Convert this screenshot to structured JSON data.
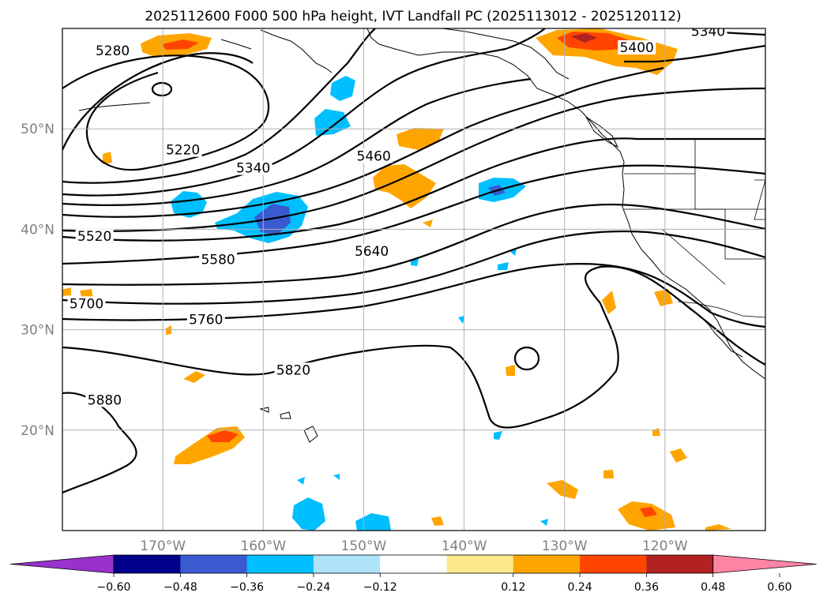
{
  "title": "2025112600 F000 500 hPa height, IVT Landfall PC (2025113012 - 2025120112)",
  "map": {
    "lon_range": [
      -180,
      -110
    ],
    "lat_range": [
      10,
      60
    ],
    "lat_labels": [
      "50°N",
      "40°N",
      "30°N",
      "20°N"
    ],
    "lat_values": [
      50,
      40,
      30,
      20
    ],
    "lon_labels": [
      "170°W",
      "160°W",
      "150°W",
      "140°W",
      "130°W",
      "120°W"
    ],
    "lon_values": [
      -170,
      -160,
      -150,
      -140,
      -130,
      -120
    ],
    "gridlines": true
  },
  "height_contours": {
    "units": "gpm",
    "labels": [
      {
        "value": "5280",
        "lon": -175,
        "lat": 57.5
      },
      {
        "value": "5220",
        "lon": -168,
        "lat": 47.6
      },
      {
        "value": "5340",
        "lon": -161,
        "lat": 45.8
      },
      {
        "value": "5460",
        "lon": -149,
        "lat": 47.0
      },
      {
        "value": "5520",
        "lon": -176.8,
        "lat": 39.0
      },
      {
        "value": "5580",
        "lon": -164.5,
        "lat": 36.7
      },
      {
        "value": "5640",
        "lon": -149.2,
        "lat": 37.5
      },
      {
        "value": "5700",
        "lon": -177.6,
        "lat": 32.3
      },
      {
        "value": "5760",
        "lon": -165.7,
        "lat": 30.7
      },
      {
        "value": "5820",
        "lon": -157.0,
        "lat": 25.7
      },
      {
        "value": "5880",
        "lon": -175.8,
        "lat": 22.7
      },
      {
        "value": "5400",
        "lon": -122.8,
        "lat": 57.8
      },
      {
        "value": "5340",
        "lon": -115.7,
        "lat": 59.4
      }
    ]
  },
  "shading": {
    "field": "IVT Landfall PC",
    "colors": [
      "#9932cc",
      "#00008b",
      "#3a5bd0",
      "#00bfff",
      "#aee3fa",
      "#ffffff",
      "#fde98c",
      "#ffa500",
      "#ff4500",
      "#b22222",
      "#ff85a7"
    ],
    "positive_colors": [
      "#ffa500",
      "#ff4500",
      "#b22222"
    ],
    "negative_colors": [
      "#00bfff",
      "#3a5bd0",
      "#00008b"
    ]
  },
  "colorbar": {
    "ticks": [
      "−0.60",
      "−0.48",
      "−0.36",
      "−0.24",
      "−0.12",
      "0.12",
      "0.24",
      "0.36",
      "0.48",
      "0.60"
    ],
    "extend": "both"
  }
}
